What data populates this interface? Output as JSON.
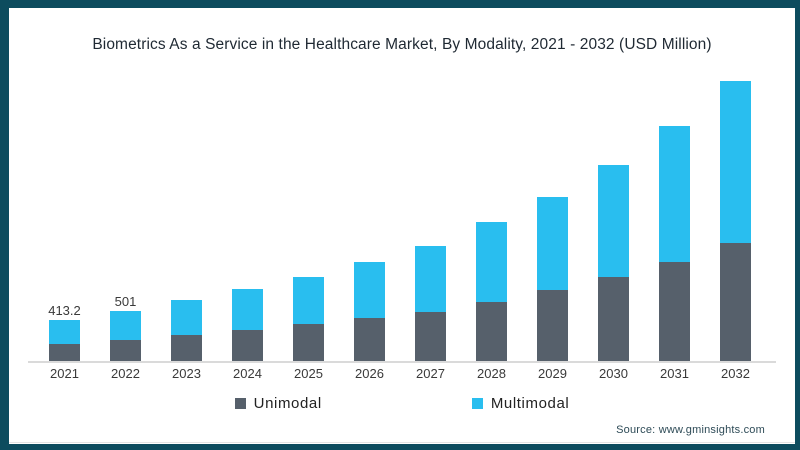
{
  "title": {
    "text": "Biometrics As a Service in the Healthcare Market, By Modality, 2021 - 2032 (USD Million)"
  },
  "footer": {
    "source": "Source: www.gminsights.com"
  },
  "legend": {
    "items": [
      {
        "label": "Unimodal",
        "color": "#56606B"
      },
      {
        "label": "Multimodal",
        "color": "#29BEEF"
      }
    ]
  },
  "colors": {
    "frame_teal": "#0D4C5E",
    "accent_cyan": "#29BEEF",
    "slate_gray": "#56606B",
    "axis_line": "#DADADA"
  },
  "chart_data": {
    "type": "bar",
    "stacked": true,
    "title": "Biometrics As a Service in the Healthcare Market, By Modality, 2021 - 2032 (USD Million)",
    "unit": "USD Million",
    "categories": [
      "2021",
      "2022",
      "2023",
      "2024",
      "2025",
      "2026",
      "2027",
      "2028",
      "2029",
      "2030",
      "2031",
      "2032"
    ],
    "series": [
      {
        "name": "Unimodal",
        "color": "#56606B",
        "values": [
          175,
          215,
          265,
          310,
          370,
          430,
          495,
          590,
          710,
          845,
          995,
          1185
        ]
      },
      {
        "name": "Multimodal",
        "color": "#29BEEF",
        "values": [
          238.2,
          286,
          350,
          415,
          475,
          560,
          655,
          800,
          935,
          1120,
          1355,
          1620
        ]
      }
    ],
    "totals": [
      413.2,
      501,
      615,
      725,
      845,
      990,
      1150,
      1390,
      1645,
      1965,
      2350,
      2805
    ],
    "bar_total_labels": [
      "413.2",
      "501",
      "",
      "",
      "",
      "",
      "",
      "",
      "",
      "",
      "",
      ""
    ],
    "ylim": [
      0,
      3000
    ],
    "grid": false,
    "y_axis_visible": false,
    "legend_position": "bottom"
  }
}
